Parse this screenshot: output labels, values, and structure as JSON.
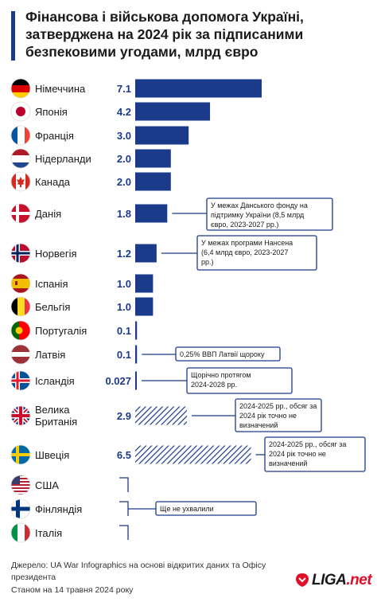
{
  "header": {
    "title": "Фінансова і військова допомога Україні, затверджена на 2024 рік за підписаними безпековими угодами, млрд євро"
  },
  "colors": {
    "accent": "#1b3a8a",
    "bar": "#1b3a8a",
    "logo_red": "#e0102b"
  },
  "chart_data": {
    "type": "bar",
    "orientation": "horizontal",
    "categories": [
      "Німеччина",
      "Японія",
      "Франція",
      "Нідерланди",
      "Канада",
      "Данія",
      "Норвегія",
      "Іспанія",
      "Бельгія",
      "Португалія",
      "Латвія",
      "Ісландія",
      "Велика Британія",
      "Швеція",
      "США",
      "Фінляндія",
      "Італія"
    ],
    "values": [
      7.1,
      4.2,
      3.0,
      2.0,
      2.0,
      1.8,
      1.2,
      1.0,
      1.0,
      0.1,
      0.1,
      0.027,
      2.9,
      6.5,
      null,
      null,
      null
    ],
    "value_labels": [
      "7.1",
      "4.2",
      "3.0",
      "2.0",
      "2.0",
      "1.8",
      "1.2",
      "1.0",
      "1.0",
      "0.1",
      "0.1",
      "0.027",
      "2.9",
      "6.5",
      "",
      "",
      ""
    ],
    "hatched": [
      false,
      false,
      false,
      false,
      false,
      false,
      false,
      false,
      false,
      false,
      false,
      false,
      true,
      true,
      false,
      false,
      false
    ],
    "flags": [
      "germany-flag-icon",
      "japan-flag-icon",
      "france-flag-icon",
      "netherlands-flag-icon",
      "canada-flag-icon",
      "denmark-flag-icon",
      "norway-flag-icon",
      "spain-flag-icon",
      "belgium-flag-icon",
      "portugal-flag-icon",
      "latvia-flag-icon",
      "iceland-flag-icon",
      "uk-flag-icon",
      "sweden-flag-icon",
      "usa-flag-icon",
      "finland-flag-icon",
      "italy-flag-icon"
    ],
    "annotations": [
      {
        "country": "Данія",
        "text": [
          "У межах Данського фонду на",
          "підтримку України (8,5 млрд",
          "євро, 2023-2027 рр.)"
        ]
      },
      {
        "country": "Норвегія",
        "text": [
          "У межах програми Нансена",
          "(6,4 млрд євро, 2023-2027",
          "рр.)"
        ]
      },
      {
        "country": "Латвія",
        "text": [
          "0,25% ВВП Латвії щороку"
        ]
      },
      {
        "country": "Ісландія",
        "text": [
          "Щорічно протягом",
          "2024-2028 рр."
        ]
      },
      {
        "country": "Велика Британія",
        "text": [
          "2024-2025 рр., обсяг за",
          "2024 рік точно не",
          "визначений"
        ]
      },
      {
        "country": "Швеція",
        "text": [
          "2024-2025 рр., обсяг за",
          "2024 рік точно не",
          "визначений"
        ]
      },
      {
        "country": "Фінляндія",
        "text": [
          "Ще не ухвалили"
        ]
      }
    ],
    "xlim": [
      0,
      7.1
    ],
    "xlabel": "",
    "ylabel": ""
  },
  "footer": {
    "source_line1": "Джерело: UA War Infographics на основі відкритих даних та Офісу",
    "source_line2": "президента",
    "date": "Станом на 14 травня 2024 року"
  },
  "logo": {
    "text_main": "LIGA",
    "text_suffix": ".net"
  }
}
